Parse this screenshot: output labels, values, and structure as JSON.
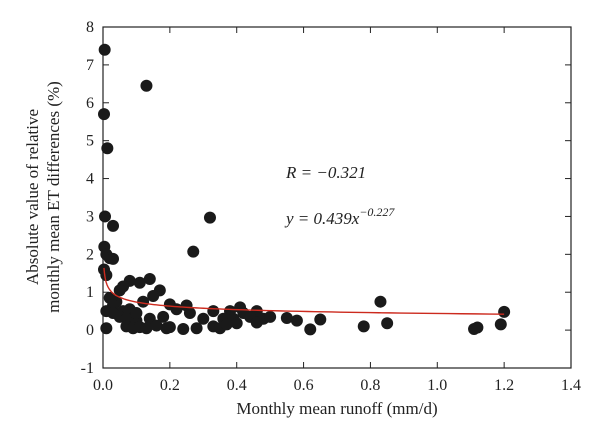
{
  "chart_data": {
    "type": "scatter",
    "title": "",
    "xlabel": "Monthly mean runoff (mm/d)",
    "ylabel_lines": [
      "Absolute value of relative",
      "monthly mean ET differences (%)"
    ],
    "xlim": [
      0,
      1.4
    ],
    "ylim": [
      -1,
      8
    ],
    "xticks": [
      0,
      0.2,
      0.4,
      0.6,
      0.8,
      1.0,
      1.2,
      1.4
    ],
    "xtick_labels": [
      "0.0",
      "0.2",
      "0.4",
      "0.6",
      "0.8",
      "1.0",
      "1.2",
      "1.4"
    ],
    "yticks": [
      -1,
      0,
      1,
      2,
      3,
      4,
      5,
      6,
      7,
      8
    ],
    "ytick_labels": [
      "-1",
      "0",
      "1",
      "2",
      "3",
      "4",
      "5",
      "6",
      "7",
      "8"
    ],
    "grid": false,
    "legend": "none",
    "marker_color": "#1a1a1a",
    "fit_color": "#cc2a1e",
    "annotations": {
      "r_label": "R = −0.321",
      "eq_lhs": "y = 0.439x",
      "eq_exp": "−0.227"
    },
    "fit": {
      "a": 0.439,
      "b": -0.227,
      "x_range": [
        0.003,
        1.2
      ]
    },
    "points": [
      {
        "x": 0.005,
        "y": 7.4
      },
      {
        "x": 0.003,
        "y": 5.7
      },
      {
        "x": 0.013,
        "y": 4.8
      },
      {
        "x": 0.13,
        "y": 6.45
      },
      {
        "x": 0.006,
        "y": 3.0
      },
      {
        "x": 0.32,
        "y": 2.97
      },
      {
        "x": 0.03,
        "y": 2.75
      },
      {
        "x": 0.27,
        "y": 2.07
      },
      {
        "x": 0.004,
        "y": 2.2
      },
      {
        "x": 0.01,
        "y": 2.0
      },
      {
        "x": 0.02,
        "y": 1.9
      },
      {
        "x": 0.03,
        "y": 1.88
      },
      {
        "x": 0.003,
        "y": 1.6
      },
      {
        "x": 0.01,
        "y": 1.45
      },
      {
        "x": 0.14,
        "y": 1.35
      },
      {
        "x": 0.08,
        "y": 1.3
      },
      {
        "x": 0.11,
        "y": 1.25
      },
      {
        "x": 0.06,
        "y": 1.15
      },
      {
        "x": 0.17,
        "y": 1.05
      },
      {
        "x": 0.15,
        "y": 0.9
      },
      {
        "x": 0.02,
        "y": 0.85
      },
      {
        "x": 0.04,
        "y": 0.75
      },
      {
        "x": 0.03,
        "y": 0.65
      },
      {
        "x": 0.12,
        "y": 0.75
      },
      {
        "x": 0.2,
        "y": 0.68
      },
      {
        "x": 0.25,
        "y": 0.65
      },
      {
        "x": 0.08,
        "y": 0.55
      },
      {
        "x": 0.06,
        "y": 0.5
      },
      {
        "x": 0.01,
        "y": 0.5
      },
      {
        "x": 0.22,
        "y": 0.55
      },
      {
        "x": 0.26,
        "y": 0.45
      },
      {
        "x": 0.33,
        "y": 0.5
      },
      {
        "x": 0.38,
        "y": 0.5
      },
      {
        "x": 0.41,
        "y": 0.6
      },
      {
        "x": 0.46,
        "y": 0.5
      },
      {
        "x": 0.42,
        "y": 0.45
      },
      {
        "x": 0.05,
        "y": 0.35
      },
      {
        "x": 0.07,
        "y": 0.3
      },
      {
        "x": 0.1,
        "y": 0.25
      },
      {
        "x": 0.14,
        "y": 0.3
      },
      {
        "x": 0.18,
        "y": 0.35
      },
      {
        "x": 0.3,
        "y": 0.3
      },
      {
        "x": 0.36,
        "y": 0.3
      },
      {
        "x": 0.39,
        "y": 0.3
      },
      {
        "x": 0.44,
        "y": 0.35
      },
      {
        "x": 0.48,
        "y": 0.3
      },
      {
        "x": 0.5,
        "y": 0.35
      },
      {
        "x": 0.55,
        "y": 0.32
      },
      {
        "x": 0.58,
        "y": 0.25
      },
      {
        "x": 0.65,
        "y": 0.28
      },
      {
        "x": 0.83,
        "y": 0.75
      },
      {
        "x": 0.85,
        "y": 0.18
      },
      {
        "x": 0.78,
        "y": 0.1
      },
      {
        "x": 1.2,
        "y": 0.48
      },
      {
        "x": 1.19,
        "y": 0.15
      },
      {
        "x": 1.11,
        "y": 0.03
      },
      {
        "x": 1.12,
        "y": 0.07
      },
      {
        "x": 0.62,
        "y": 0.02
      },
      {
        "x": 0.07,
        "y": 0.1
      },
      {
        "x": 0.09,
        "y": 0.05
      },
      {
        "x": 0.11,
        "y": 0.08
      },
      {
        "x": 0.13,
        "y": 0.05
      },
      {
        "x": 0.16,
        "y": 0.12
      },
      {
        "x": 0.19,
        "y": 0.05
      },
      {
        "x": 0.2,
        "y": 0.08
      },
      {
        "x": 0.24,
        "y": 0.03
      },
      {
        "x": 0.28,
        "y": 0.05
      },
      {
        "x": 0.33,
        "y": 0.1
      },
      {
        "x": 0.35,
        "y": 0.05
      },
      {
        "x": 0.37,
        "y": 0.15
      },
      {
        "x": 0.4,
        "y": 0.18
      },
      {
        "x": 0.46,
        "y": 0.2
      },
      {
        "x": 0.01,
        "y": 0.05
      },
      {
        "x": 0.03,
        "y": 0.45
      },
      {
        "x": 0.05,
        "y": 1.05
      },
      {
        "x": 0.1,
        "y": 0.45
      }
    ]
  }
}
